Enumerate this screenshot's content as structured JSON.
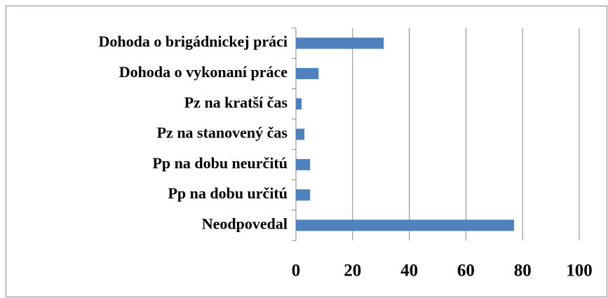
{
  "chart_data": {
    "type": "bar",
    "orientation": "horizontal",
    "categories": [
      "Dohoda o brigádnickej práci",
      "Dohoda o vykonaní práce",
      "Pz na kratší čas",
      "Pz na stanovený čas",
      "Pp na dobu neurčitú",
      "Pp na dobu určitú",
      "Neodpovedal"
    ],
    "values": [
      31,
      8,
      2,
      3,
      5,
      5,
      77
    ],
    "color": "#4f81bd",
    "xlim": [
      0,
      100
    ],
    "xticks": [
      0,
      20,
      40,
      60,
      80,
      100
    ],
    "grid": true
  }
}
